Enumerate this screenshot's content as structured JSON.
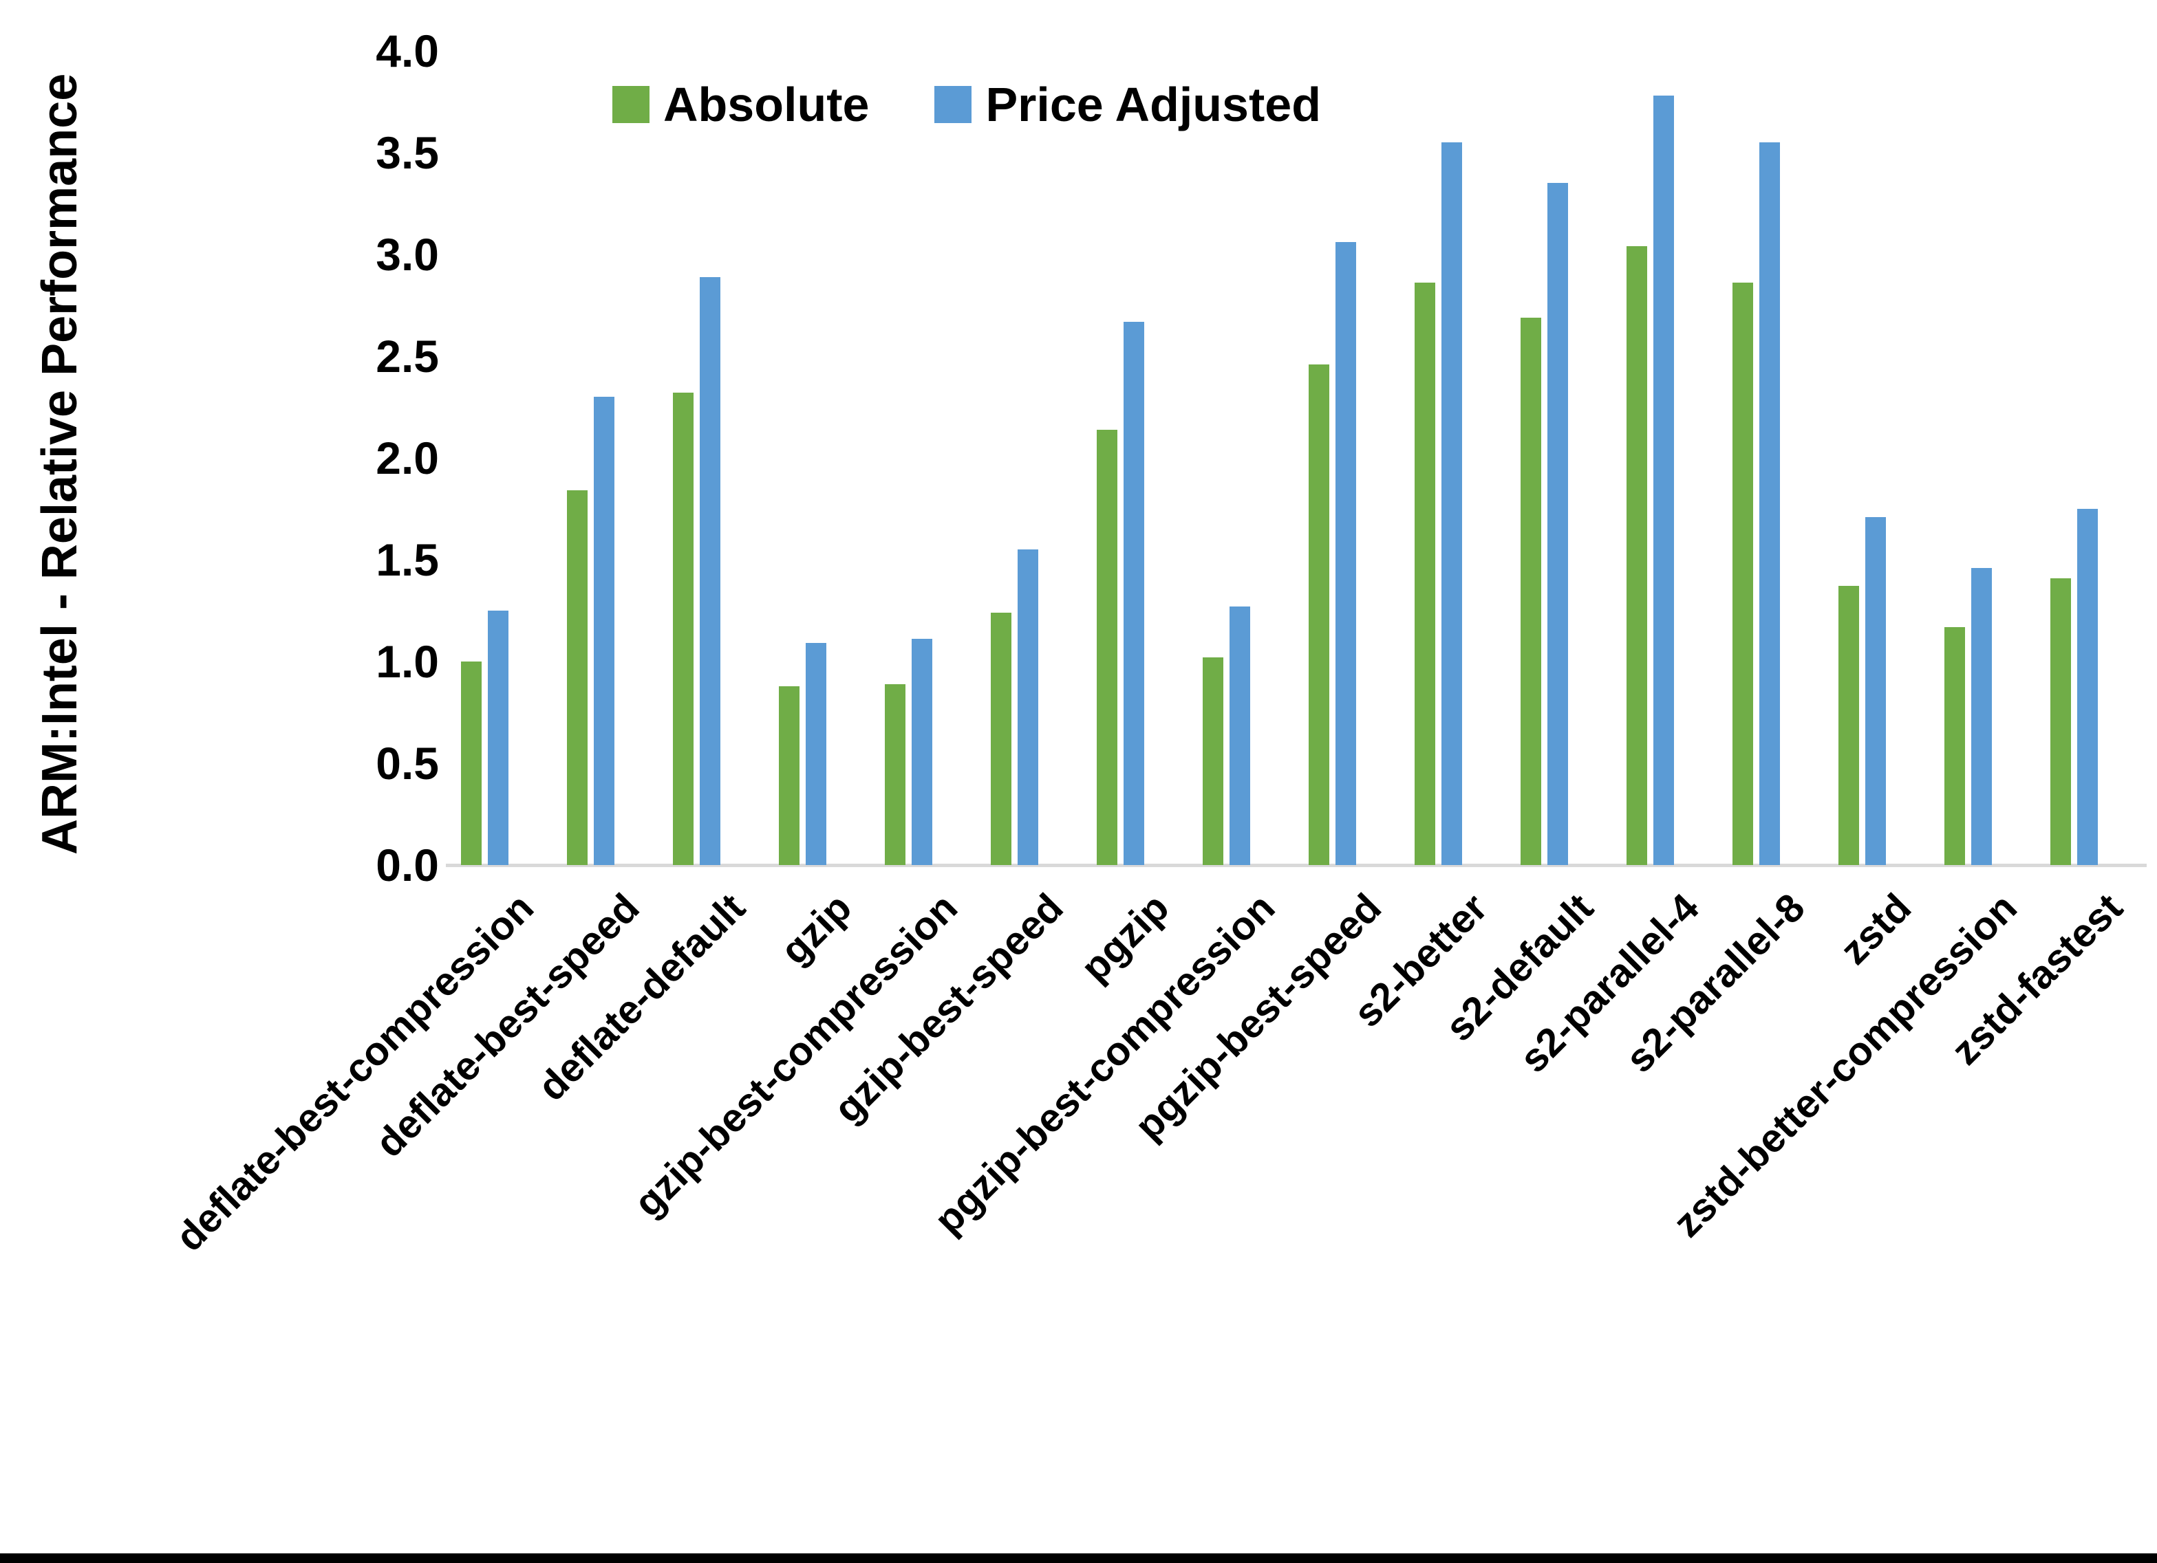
{
  "chart_data": {
    "type": "bar",
    "title": "",
    "xlabel": "",
    "ylabel": "ARM:Intel - Relative Performance",
    "ylim": [
      0.0,
      4.0
    ],
    "ytick_step": 0.5,
    "yticks": [
      "0.0",
      "0.5",
      "1.0",
      "1.5",
      "2.0",
      "2.5",
      "3.0",
      "3.5",
      "4.0"
    ],
    "grid": false,
    "legend_position": "top-center",
    "background_color": "#ffffff",
    "baseline_color": "#d9d9d9",
    "text_color": "#000000",
    "categories": [
      "deflate-best-compression",
      "deflate-best-speed",
      "deflate-default",
      "gzip",
      "gzip-best-compression",
      "gzip-best-speed",
      "pgzip",
      "pgzip-best-compression",
      "pgzip-best-speed",
      "s2-better",
      "s2-default",
      "s2-parallel-4",
      "s2-parallel-8",
      "zstd",
      "zstd-better-compression",
      "zstd-fastest"
    ],
    "series": [
      {
        "name": "Absolute",
        "color": "#70AD47",
        "values": [
          1.0,
          1.84,
          2.32,
          0.88,
          0.89,
          1.24,
          2.14,
          1.02,
          2.46,
          2.86,
          2.69,
          3.04,
          2.86,
          1.37,
          1.17,
          1.41
        ]
      },
      {
        "name": "Price Adjusted",
        "color": "#5B9BD5",
        "values": [
          1.25,
          2.3,
          2.89,
          1.09,
          1.11,
          1.55,
          2.67,
          1.27,
          3.06,
          3.55,
          3.35,
          3.78,
          3.55,
          1.71,
          1.46,
          1.75
        ]
      }
    ]
  }
}
